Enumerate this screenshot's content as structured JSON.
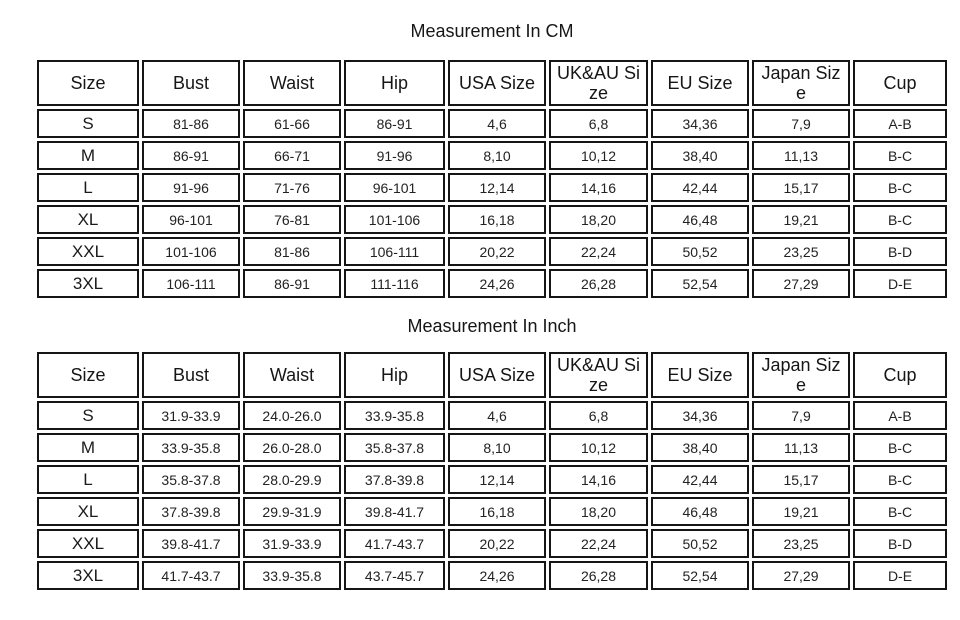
{
  "colors": {
    "background": "#ffffff",
    "border": "#151515",
    "text": "#1c1c1c"
  },
  "chart_data": [
    {
      "type": "table",
      "title": "Measurement In CM",
      "columns": [
        "Size",
        "Bust",
        "Waist",
        "Hip",
        "USA Size",
        "UK&AU Si\nze",
        "EU Size",
        "Japan Siz\ne",
        "Cup"
      ],
      "rows": [
        [
          "S",
          "81-86",
          "61-66",
          "86-91",
          "4,6",
          "6,8",
          "34,36",
          "7,9",
          "A-B"
        ],
        [
          "M",
          "86-91",
          "66-71",
          "91-96",
          "8,10",
          "10,12",
          "38,40",
          "11,13",
          "B-C"
        ],
        [
          "L",
          "91-96",
          "71-76",
          "96-101",
          "12,14",
          "14,16",
          "42,44",
          "15,17",
          "B-C"
        ],
        [
          "XL",
          "96-101",
          "76-81",
          "101-106",
          "16,18",
          "18,20",
          "46,48",
          "19,21",
          "B-C"
        ],
        [
          "XXL",
          "101-106",
          "81-86",
          "106-111",
          "20,22",
          "22,24",
          "50,52",
          "23,25",
          "B-D"
        ],
        [
          "3XL",
          "106-111",
          "86-91",
          "111-116",
          "24,26",
          "26,28",
          "52,54",
          "27,29",
          "D-E"
        ]
      ]
    },
    {
      "type": "table",
      "title": "Measurement In Inch",
      "columns": [
        "Size",
        "Bust",
        "Waist",
        "Hip",
        "USA Size",
        "UK&AU Si\nze",
        "EU Size",
        "Japan Siz\ne",
        "Cup"
      ],
      "rows": [
        [
          "S",
          "31.9-33.9",
          "24.0-26.0",
          "33.9-35.8",
          "4,6",
          "6,8",
          "34,36",
          "7,9",
          "A-B"
        ],
        [
          "M",
          "33.9-35.8",
          "26.0-28.0",
          "35.8-37.8",
          "8,10",
          "10,12",
          "38,40",
          "11,13",
          "B-C"
        ],
        [
          "L",
          "35.8-37.8",
          "28.0-29.9",
          "37.8-39.8",
          "12,14",
          "14,16",
          "42,44",
          "15,17",
          "B-C"
        ],
        [
          "XL",
          "37.8-39.8",
          "29.9-31.9",
          "39.8-41.7",
          "16,18",
          "18,20",
          "46,48",
          "19,21",
          "B-C"
        ],
        [
          "XXL",
          "39.8-41.7",
          "31.9-33.9",
          "41.7-43.7",
          "20,22",
          "22,24",
          "50,52",
          "23,25",
          "B-D"
        ],
        [
          "3XL",
          "41.7-43.7",
          "33.9-35.8",
          "43.7-45.7",
          "24,26",
          "26,28",
          "52,54",
          "27,29",
          "D-E"
        ]
      ]
    }
  ]
}
